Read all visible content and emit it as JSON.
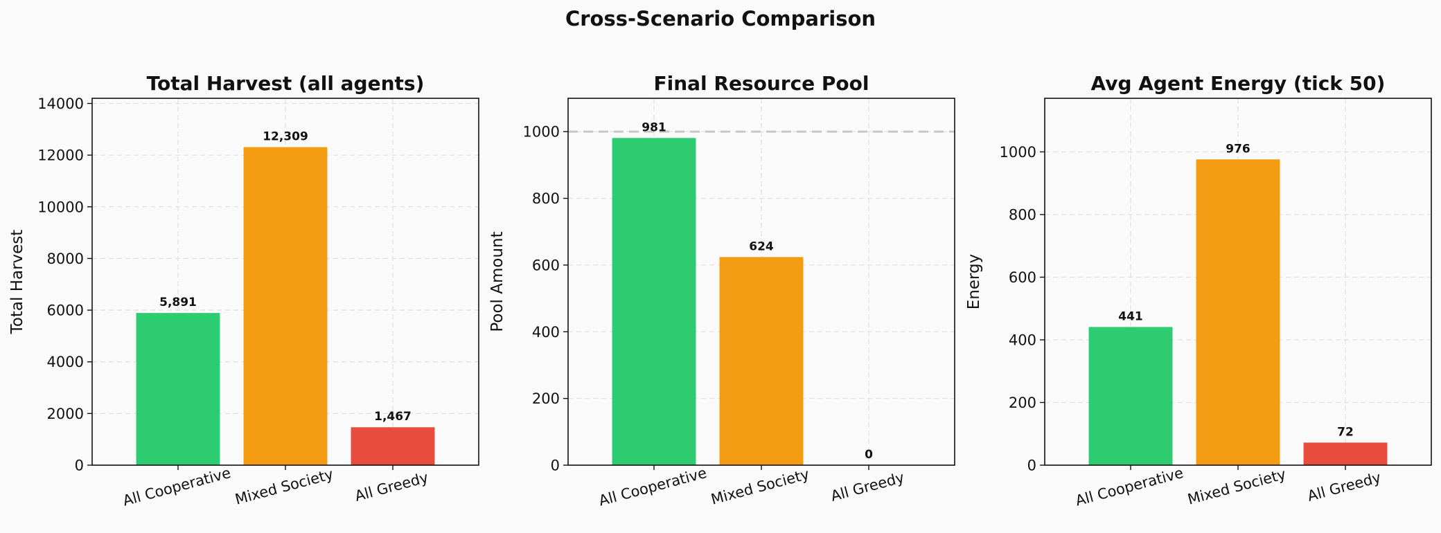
{
  "figure": {
    "title": "Cross-Scenario Comparison"
  },
  "colors": {
    "background": "#fafafa",
    "bar_colors": [
      "#2ecc71",
      "#f39c12",
      "#e74c3c"
    ]
  },
  "chart_data": [
    {
      "type": "bar",
      "title": "Total Harvest (all agents)",
      "xlabel": "",
      "ylabel": "Total Harvest",
      "categories": [
        "All Cooperative",
        "Mixed Society",
        "All Greedy"
      ],
      "values": [
        5891,
        12309,
        1467
      ],
      "value_labels": [
        "5,891",
        "12,309",
        "1,467"
      ],
      "ylim": [
        0,
        14200
      ],
      "yticks": [
        0,
        2000,
        4000,
        6000,
        8000,
        10000,
        12000,
        14000
      ],
      "grid": true
    },
    {
      "type": "bar",
      "title": "Final Resource Pool",
      "xlabel": "",
      "ylabel": "Pool Amount",
      "categories": [
        "All Cooperative",
        "Mixed Society",
        "All Greedy"
      ],
      "values": [
        981,
        624,
        0
      ],
      "value_labels": [
        "981",
        "624",
        "0"
      ],
      "ylim": [
        0,
        1100
      ],
      "yticks": [
        0,
        200,
        400,
        600,
        800,
        1000
      ],
      "reference_line": 1000,
      "grid": true
    },
    {
      "type": "bar",
      "title": "Avg Agent Energy (tick 50)",
      "xlabel": "",
      "ylabel": "Energy",
      "categories": [
        "All Cooperative",
        "Mixed Society",
        "All Greedy"
      ],
      "values": [
        441,
        976,
        72
      ],
      "value_labels": [
        "441",
        "976",
        "72"
      ],
      "ylim": [
        0,
        1171
      ],
      "yticks": [
        0,
        200,
        400,
        600,
        800,
        1000
      ],
      "grid": true
    }
  ]
}
